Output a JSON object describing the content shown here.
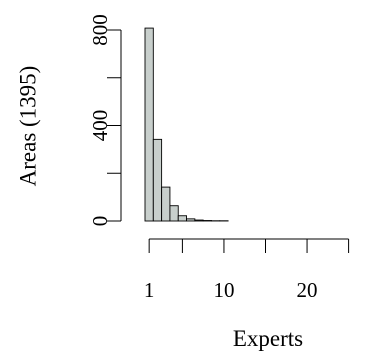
{
  "chart_data": {
    "type": "bar",
    "xlabel": "Experts",
    "ylabel": "Areas (1395)",
    "x": [
      1,
      2,
      3,
      4,
      5,
      6,
      7,
      8,
      9,
      10,
      11,
      12,
      13,
      14,
      15,
      16,
      17,
      18,
      19,
      20,
      21,
      22,
      23,
      24,
      25,
      26,
      27,
      28,
      29
    ],
    "values": [
      808,
      342,
      142,
      64,
      22,
      9,
      4,
      2,
      1,
      1,
      0,
      0,
      0,
      0,
      0,
      0,
      0,
      0,
      0,
      0,
      0,
      0,
      0,
      0,
      0,
      0,
      0,
      0,
      0
    ],
    "xlim": [
      0.5,
      29.5
    ],
    "ylim": [
      0,
      800
    ],
    "x_ticks": [
      "1",
      "10",
      "20"
    ],
    "y_ticks": [
      "0",
      "400",
      "800"
    ],
    "grid": false,
    "legend": "none"
  }
}
